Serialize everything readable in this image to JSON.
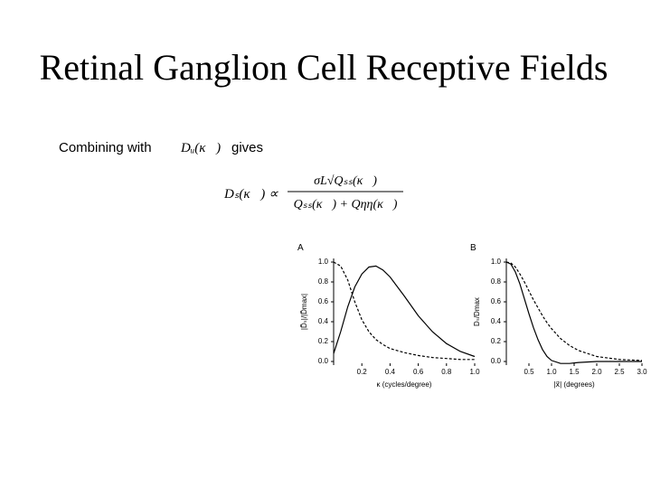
{
  "title": "Retinal Ganglion Cell Receptive Fields",
  "intro": {
    "before": "Combining with",
    "symbol": "Dᵤ(κ⃗)",
    "after": "gives"
  },
  "formula": {
    "lhs": "Dₛ(κ⃗) ∝",
    "numerator": "σL√Qₛₛ(κ⃗)",
    "denominator": "Qₛₛ(κ⃗) + Qηη(κ⃗)"
  },
  "chart_data": [
    {
      "type": "line",
      "panel": "A",
      "x_label": "κ (cycles/degree)",
      "y_label": "|D̃ₛ|/|D̃max|",
      "x": [
        0,
        0.05,
        0.1,
        0.15,
        0.2,
        0.25,
        0.3,
        0.35,
        0.4,
        0.5,
        0.6,
        0.7,
        0.8,
        0.9,
        1.0
      ],
      "series": [
        {
          "color": "#000000",
          "style": "solid",
          "values": [
            0.08,
            0.3,
            0.55,
            0.75,
            0.88,
            0.95,
            0.96,
            0.92,
            0.85,
            0.66,
            0.46,
            0.3,
            0.18,
            0.1,
            0.05
          ]
        },
        {
          "color": "#000000",
          "style": "dashed",
          "values": [
            1.0,
            0.96,
            0.82,
            0.6,
            0.42,
            0.3,
            0.22,
            0.17,
            0.13,
            0.09,
            0.06,
            0.04,
            0.03,
            0.02,
            0.02
          ]
        }
      ],
      "xlim": [
        0,
        1.0
      ],
      "ylim": [
        0,
        1.0
      ],
      "xticks": [
        0.2,
        0.4,
        0.6,
        0.8,
        {
          "value": 1,
          "label": "1.0"
        }
      ],
      "yticks": [
        {
          "value": 0,
          "label": "0.0"
        },
        0.2,
        0.4,
        0.6,
        0.8,
        {
          "value": 1,
          "label": "1.0"
        }
      ]
    },
    {
      "type": "line",
      "panel": "B",
      "x_label": "|x⃗| (degrees)",
      "y_label": "Dₛ/Dmax",
      "x": [
        0,
        0.1,
        0.2,
        0.3,
        0.4,
        0.5,
        0.6,
        0.7,
        0.8,
        0.9,
        1.0,
        1.2,
        1.4,
        1.6,
        2.0,
        2.5,
        3.0
      ],
      "series": [
        {
          "color": "#000000",
          "style": "solid",
          "values": [
            1.0,
            0.98,
            0.9,
            0.78,
            0.63,
            0.48,
            0.34,
            0.22,
            0.12,
            0.05,
            0.01,
            -0.02,
            -0.02,
            -0.01,
            0,
            0,
            0
          ]
        },
        {
          "color": "#000000",
          "style": "dashed",
          "values": [
            1.0,
            0.99,
            0.95,
            0.88,
            0.8,
            0.71,
            0.62,
            0.54,
            0.46,
            0.39,
            0.33,
            0.23,
            0.16,
            0.11,
            0.05,
            0.02,
            0.01
          ]
        }
      ],
      "xlim": [
        0,
        3.0
      ],
      "ylim": [
        0,
        1.0
      ],
      "xticks": [
        0.5,
        {
          "value": 1,
          "label": "1.0"
        },
        1.5,
        {
          "value": 2,
          "label": "2.0"
        },
        2.5,
        {
          "value": 3,
          "label": "3.0"
        }
      ],
      "yticks": [
        {
          "value": 0,
          "label": "0.0"
        },
        0.2,
        0.4,
        0.6,
        0.8,
        {
          "value": 1,
          "label": "1.0"
        }
      ]
    }
  ]
}
